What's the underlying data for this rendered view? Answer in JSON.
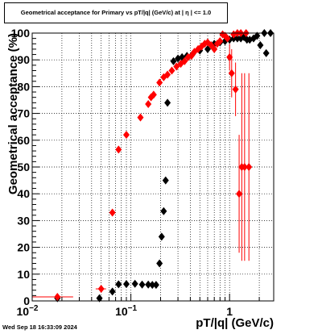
{
  "title": "Geometrical acceptance for Primary vs pT/|q| (GeV/c) at |  η | <= 1.0",
  "timestamp": "Wed Sep 18 16:33:09 2024",
  "chart_data": {
    "type": "scatter",
    "title": "Geometrical acceptance for Primary vs pT/|q| (GeV/c) at |  η | <= 1.0",
    "xlabel": "pT/|q| (GeV/c)",
    "ylabel": "Geometrical acceptance (%)",
    "xscale": "log",
    "xlim": [
      0.01,
      2.8
    ],
    "ylim": [
      0,
      100
    ],
    "xticks": [
      {
        "value": 0.01,
        "label": "10",
        "exp": "−2"
      },
      {
        "value": 0.1,
        "label": "10",
        "exp": "−1"
      },
      {
        "value": 1,
        "label": "1",
        "exp": ""
      }
    ],
    "yticks": [
      0,
      10,
      20,
      30,
      40,
      50,
      60,
      70,
      80,
      90,
      100
    ],
    "grid": true,
    "series": [
      {
        "color": "#000000",
        "marker": "diamond",
        "points": [
          {
            "x": 0.018,
            "y": 1.0
          },
          {
            "x": 0.048,
            "y": 1.0
          },
          {
            "x": 0.065,
            "y": 3.5
          },
          {
            "x": 0.075,
            "y": 6.2
          },
          {
            "x": 0.09,
            "y": 6.3
          },
          {
            "x": 0.11,
            "y": 6.4
          },
          {
            "x": 0.13,
            "y": 6.1
          },
          {
            "x": 0.15,
            "y": 6.1
          },
          {
            "x": 0.165,
            "y": 6.0
          },
          {
            "x": 0.18,
            "y": 6.0
          },
          {
            "x": 0.195,
            "y": 14.0
          },
          {
            "x": 0.205,
            "y": 24.0
          },
          {
            "x": 0.215,
            "y": 33.5
          },
          {
            "x": 0.225,
            "y": 45.0
          },
          {
            "x": 0.235,
            "y": 74.0
          },
          {
            "x": 0.27,
            "y": 89.5
          },
          {
            "x": 0.3,
            "y": 90.5
          },
          {
            "x": 0.33,
            "y": 91.0
          },
          {
            "x": 0.37,
            "y": 91.5
          },
          {
            "x": 0.42,
            "y": 92.0
          },
          {
            "x": 0.5,
            "y": 93.5
          },
          {
            "x": 0.6,
            "y": 94.0
          },
          {
            "x": 0.7,
            "y": 96.0
          },
          {
            "x": 0.8,
            "y": 96.5
          },
          {
            "x": 0.9,
            "y": 97.0
          },
          {
            "x": 1.0,
            "y": 97.5
          },
          {
            "x": 1.1,
            "y": 98.0
          },
          {
            "x": 1.2,
            "y": 98.0
          },
          {
            "x": 1.3,
            "y": 98.0
          },
          {
            "x": 1.4,
            "y": 98.5
          },
          {
            "x": 1.5,
            "y": 97.5
          },
          {
            "x": 1.6,
            "y": 97.5
          },
          {
            "x": 1.75,
            "y": 98.0
          },
          {
            "x": 1.9,
            "y": 99.0
          },
          {
            "x": 2.05,
            "y": 95.5
          },
          {
            "x": 2.25,
            "y": 100.0
          },
          {
            "x": 2.35,
            "y": 92.5
          },
          {
            "x": 2.6,
            "y": 100.0
          }
        ]
      },
      {
        "color": "#ff0000",
        "marker": "diamond",
        "points": [
          {
            "x": 0.018,
            "y": 1.5,
            "xerr": 0.008
          },
          {
            "x": 0.05,
            "y": 4.5,
            "xerr": 0.006
          },
          {
            "x": 0.065,
            "y": 33.0
          },
          {
            "x": 0.075,
            "y": 56.5
          },
          {
            "x": 0.09,
            "y": 62.0
          },
          {
            "x": 0.125,
            "y": 68.5
          },
          {
            "x": 0.15,
            "y": 73.5
          },
          {
            "x": 0.16,
            "y": 76.0
          },
          {
            "x": 0.17,
            "y": 77.0
          },
          {
            "x": 0.195,
            "y": 81.5
          },
          {
            "x": 0.215,
            "y": 83.5
          },
          {
            "x": 0.235,
            "y": 84.5
          },
          {
            "x": 0.26,
            "y": 86.0
          },
          {
            "x": 0.29,
            "y": 87.5
          },
          {
            "x": 0.32,
            "y": 88.5
          },
          {
            "x": 0.35,
            "y": 89.5
          },
          {
            "x": 0.38,
            "y": 91.0
          },
          {
            "x": 0.41,
            "y": 91.5
          },
          {
            "x": 0.44,
            "y": 93.0
          },
          {
            "x": 0.48,
            "y": 94.0
          },
          {
            "x": 0.52,
            "y": 95.0
          },
          {
            "x": 0.56,
            "y": 96.0
          },
          {
            "x": 0.6,
            "y": 96.5
          },
          {
            "x": 0.65,
            "y": 95.5
          },
          {
            "x": 0.7,
            "y": 94.0
          },
          {
            "x": 0.75,
            "y": 96.0
          },
          {
            "x": 0.8,
            "y": 97.0
          },
          {
            "x": 0.85,
            "y": 99.5
          },
          {
            "x": 0.9,
            "y": 99.0
          },
          {
            "x": 0.95,
            "y": 98.0
          },
          {
            "x": 1.0,
            "y": 91.0,
            "yerr": 5
          },
          {
            "x": 1.05,
            "y": 85.0,
            "yerr": 9
          },
          {
            "x": 1.1,
            "y": 99.5
          },
          {
            "x": 1.15,
            "y": 79.0,
            "yerr": 10
          },
          {
            "x": 1.2,
            "y": 100.0
          },
          {
            "x": 1.25,
            "y": 40.0,
            "yerr": 22
          },
          {
            "x": 1.3,
            "y": 100.0
          },
          {
            "x": 1.33,
            "y": 50.0,
            "yerr": 35
          },
          {
            "x": 1.42,
            "y": 50.0,
            "yerr": 35
          },
          {
            "x": 1.47,
            "y": 100.0
          },
          {
            "x": 1.57,
            "y": 50.0,
            "yerr": 35
          }
        ]
      }
    ]
  }
}
